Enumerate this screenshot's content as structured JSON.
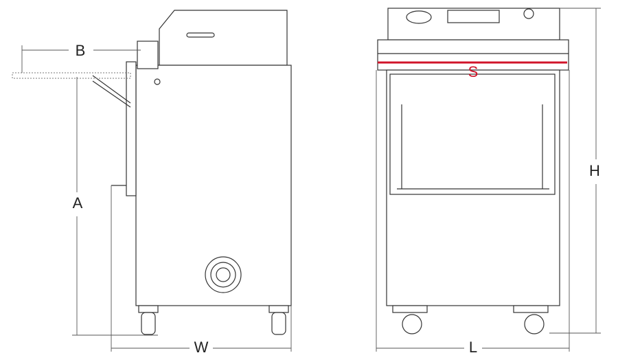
{
  "labels": {
    "b": "B",
    "a": "A",
    "w": "W",
    "s": "S",
    "l": "L",
    "h": "H"
  }
}
